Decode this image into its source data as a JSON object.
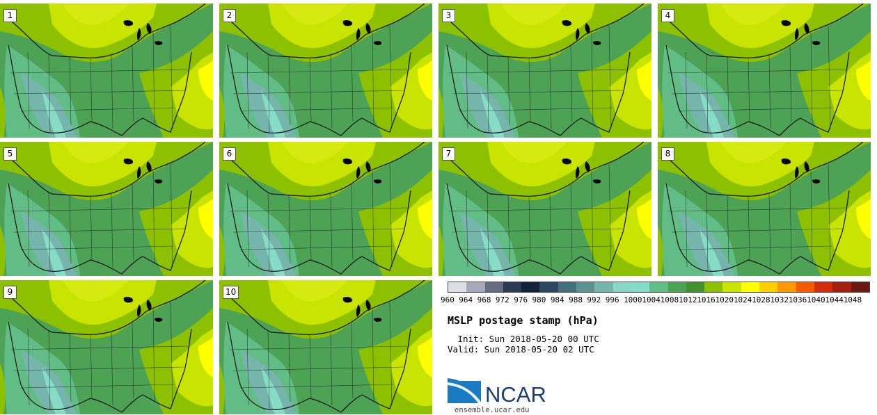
{
  "panels": [
    {
      "label": "1"
    },
    {
      "label": "2"
    },
    {
      "label": "3"
    },
    {
      "label": "4"
    },
    {
      "label": "5"
    },
    {
      "label": "6"
    },
    {
      "label": "7"
    },
    {
      "label": "8"
    },
    {
      "label": "9"
    },
    {
      "label": "10"
    }
  ],
  "legend": {
    "colors": [
      "#dcdfe6",
      "#a7a9ba",
      "#676c82",
      "#2c3a55",
      "#14213d",
      "#2d4664",
      "#44707d",
      "#5e9290",
      "#76b5ac",
      "#8ad5c4",
      "#86dcc6",
      "#62bc85",
      "#4da256",
      "#43902f",
      "#8dc100",
      "#c8e400",
      "#ffff00",
      "#ffd000",
      "#ff9900",
      "#f35c00",
      "#d12d0a",
      "#a3200f",
      "#6c190f"
    ],
    "ticks": [
      "960",
      "964",
      "968",
      "972",
      "976",
      "980",
      "984",
      "988",
      "992",
      "996",
      "1000",
      "1004",
      "1008",
      "1012",
      "1016",
      "1020",
      "1024",
      "1028",
      "1032",
      "1036",
      "1040",
      "1044",
      "1048"
    ]
  },
  "title": "MSLP postage stamp (hPa)",
  "init": " Init: Sun 2018-05-20 00 UTC",
  "valid": "Valid: Sun 2018-05-20 02 UTC",
  "logo_text": "NCAR",
  "url": "ensemble.ucar.edu"
}
